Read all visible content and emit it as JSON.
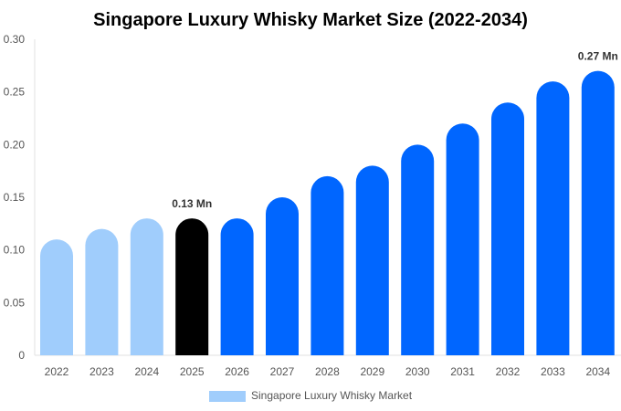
{
  "chart_data": {
    "type": "bar",
    "title": "Singapore Luxury Whisky Market Size (2022-2034)",
    "categories": [
      "2022",
      "2023",
      "2024",
      "2025",
      "2026",
      "2027",
      "2028",
      "2029",
      "2030",
      "2031",
      "2032",
      "2033",
      "2034"
    ],
    "series": [
      {
        "name": "Singapore Luxury Whisky Market",
        "values": [
          0.11,
          0.12,
          0.13,
          0.13,
          0.13,
          0.15,
          0.17,
          0.18,
          0.2,
          0.22,
          0.24,
          0.26,
          0.27
        ]
      }
    ],
    "ylim": [
      0,
      0.3
    ],
    "yticks": [
      "0",
      "0.05",
      "0.10",
      "0.15",
      "0.20",
      "0.25",
      "0.30"
    ],
    "data_labels": [
      {
        "category": "2025",
        "text": "0.13 Mn"
      },
      {
        "category": "2034",
        "text": "0.27 Mn"
      }
    ],
    "colors": {
      "history": "#a0cdfc",
      "current": "#000000",
      "forecast": "#0066ff"
    },
    "grid": false,
    "legend": "bottom"
  }
}
